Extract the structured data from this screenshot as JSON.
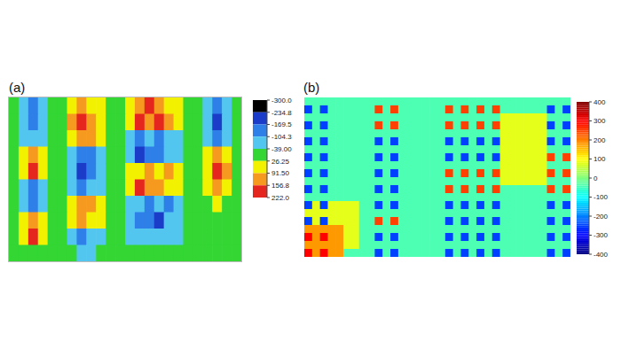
{
  "chart_data": [
    {
      "type": "heatmap",
      "title": "(a)",
      "tick_labels": false,
      "z": [
        [
          0,
          -60,
          -120,
          -60,
          0,
          0,
          60,
          120,
          80,
          50,
          0,
          0,
          60,
          110,
          160,
          120,
          70,
          50,
          0,
          0,
          -70,
          -150,
          -80,
          0
        ],
        [
          0,
          -80,
          -140,
          -70,
          0,
          0,
          110,
          180,
          150,
          90,
          0,
          0,
          80,
          200,
          130,
          190,
          100,
          60,
          0,
          0,
          -90,
          -200,
          -100,
          0
        ],
        [
          0,
          -60,
          -100,
          -50,
          0,
          0,
          70,
          130,
          100,
          60,
          0,
          0,
          -60,
          -120,
          -90,
          -140,
          -70,
          -50,
          0,
          0,
          -60,
          -130,
          -70,
          0
        ],
        [
          0,
          60,
          120,
          50,
          0,
          0,
          -80,
          -150,
          -120,
          -60,
          0,
          0,
          -80,
          -200,
          -130,
          -160,
          -100,
          -60,
          0,
          0,
          50,
          100,
          60,
          0
        ],
        [
          0,
          80,
          170,
          60,
          0,
          0,
          -100,
          -180,
          -140,
          -70,
          0,
          0,
          60,
          90,
          130,
          80,
          110,
          50,
          0,
          0,
          90,
          190,
          110,
          0
        ],
        [
          0,
          -50,
          -110,
          -60,
          0,
          0,
          -60,
          -110,
          -90,
          -50,
          0,
          0,
          80,
          170,
          110,
          140,
          90,
          60,
          0,
          0,
          60,
          120,
          70,
          0
        ],
        [
          0,
          -70,
          -130,
          -50,
          0,
          0,
          80,
          150,
          110,
          60,
          0,
          0,
          -60,
          -100,
          -150,
          -90,
          -120,
          -50,
          0,
          0,
          0,
          30,
          0,
          0
        ],
        [
          0,
          70,
          140,
          60,
          0,
          0,
          60,
          120,
          90,
          50,
          0,
          0,
          -70,
          -140,
          -110,
          -170,
          -80,
          -60,
          0,
          0,
          0,
          0,
          0,
          0
        ],
        [
          0,
          90,
          200,
          80,
          0,
          0,
          -60,
          -120,
          -90,
          -50,
          0,
          0,
          -50,
          -90,
          -60,
          -100,
          -50,
          -40,
          0,
          0,
          0,
          0,
          0,
          0
        ],
        [
          0,
          0,
          0,
          0,
          0,
          0,
          0,
          -50,
          -40,
          0,
          0,
          0,
          0,
          0,
          0,
          0,
          0,
          0,
          0,
          0,
          0,
          0,
          0,
          0
        ]
      ],
      "colorbar": {
        "range": [
          -300,
          222
        ],
        "ticks": [
          {
            "value": -300,
            "label": "-300.0"
          },
          -234.8,
          -169.5,
          -104.3,
          {
            "value": -39,
            "label": "-39.00"
          },
          26.25,
          {
            "value": 91.5,
            "label": "91.50"
          },
          156.8,
          {
            "value": 222,
            "label": "222.0"
          }
        ],
        "colors": [
          "#000000",
          "#1a3cc8",
          "#2f7fe8",
          "#53c6f0",
          "#33d633",
          "#f2f200",
          "#f59a1e",
          "#e5261e"
        ]
      }
    },
    {
      "type": "heatmap",
      "title": "(b)",
      "tick_labels": false,
      "z": [
        [
          -40,
          -40,
          -40,
          -40,
          -40,
          -40,
          -40,
          -40,
          -40,
          -40,
          -40,
          -40,
          -40,
          -40,
          -40,
          -40,
          -40,
          -40,
          -40,
          -40,
          -40,
          -40,
          -40,
          -40,
          -40,
          -40,
          -40,
          -40,
          -40,
          -40,
          -40,
          -40,
          -40,
          -40
        ],
        [
          -250,
          -40,
          -250,
          -40,
          -40,
          -40,
          -40,
          -40,
          -40,
          250,
          -40,
          250,
          -40,
          -40,
          -40,
          -40,
          -40,
          -40,
          250,
          -40,
          250,
          -40,
          250,
          -40,
          250,
          -40,
          -40,
          -40,
          -40,
          -40,
          -40,
          -250,
          -40,
          -250
        ],
        [
          -40,
          -40,
          -40,
          -40,
          -40,
          -40,
          -40,
          -40,
          -40,
          -40,
          -40,
          -40,
          -40,
          -40,
          -40,
          -40,
          -40,
          -40,
          -40,
          -40,
          -40,
          -40,
          -40,
          -40,
          -40,
          80,
          80,
          80,
          80,
          80,
          80,
          -40,
          -40,
          -40
        ],
        [
          -250,
          -40,
          -250,
          -40,
          -40,
          -40,
          -40,
          -40,
          -40,
          250,
          -40,
          250,
          -40,
          -40,
          -40,
          -40,
          -40,
          -40,
          250,
          -40,
          250,
          -40,
          250,
          -40,
          250,
          80,
          80,
          80,
          80,
          80,
          80,
          -250,
          -40,
          -250
        ],
        [
          -40,
          -40,
          -40,
          -40,
          -40,
          -40,
          -40,
          -40,
          -40,
          -40,
          -40,
          -40,
          -40,
          -40,
          -40,
          -40,
          -40,
          -40,
          -40,
          -40,
          -40,
          -40,
          -40,
          -40,
          -40,
          80,
          80,
          80,
          80,
          80,
          80,
          -40,
          -40,
          -40
        ],
        [
          -250,
          -40,
          -250,
          -40,
          -40,
          -40,
          -40,
          -40,
          -40,
          -250,
          -40,
          -250,
          -40,
          -40,
          -40,
          -40,
          -40,
          -40,
          -250,
          -40,
          -250,
          -40,
          -250,
          -40,
          -250,
          80,
          80,
          80,
          80,
          80,
          80,
          -250,
          -40,
          -250
        ],
        [
          -40,
          -40,
          -40,
          -40,
          -40,
          -40,
          -40,
          -40,
          -40,
          -40,
          -40,
          -40,
          -40,
          -40,
          -40,
          -40,
          -40,
          -40,
          -40,
          -40,
          -40,
          -40,
          -40,
          -40,
          -40,
          80,
          80,
          80,
          80,
          80,
          80,
          -40,
          -40,
          -40
        ],
        [
          -250,
          -40,
          -250,
          -40,
          -40,
          -40,
          -40,
          -40,
          -40,
          -250,
          -40,
          -250,
          -40,
          -40,
          -40,
          -40,
          -40,
          -40,
          -250,
          -40,
          -250,
          -40,
          -250,
          -40,
          -250,
          80,
          80,
          80,
          80,
          80,
          80,
          250,
          -40,
          250
        ],
        [
          -40,
          -40,
          -40,
          -40,
          -40,
          -40,
          -40,
          -40,
          -40,
          -40,
          -40,
          -40,
          -40,
          -40,
          -40,
          -40,
          -40,
          -40,
          -40,
          -40,
          -40,
          -40,
          -40,
          -40,
          -40,
          80,
          80,
          80,
          80,
          80,
          80,
          -40,
          -40,
          -40
        ],
        [
          -250,
          -40,
          -250,
          -40,
          -40,
          -40,
          -40,
          -40,
          -40,
          -250,
          -40,
          -250,
          -40,
          -40,
          -40,
          -40,
          -40,
          -40,
          250,
          -40,
          250,
          -40,
          250,
          -40,
          250,
          80,
          80,
          80,
          80,
          80,
          80,
          250,
          -40,
          250
        ],
        [
          -40,
          -40,
          -40,
          -40,
          -40,
          -40,
          -40,
          -40,
          -40,
          -40,
          -40,
          -40,
          -40,
          -40,
          -40,
          -40,
          -40,
          -40,
          -40,
          -40,
          -40,
          -40,
          -40,
          -40,
          -40,
          80,
          80,
          80,
          80,
          80,
          80,
          -40,
          -40,
          -40
        ],
        [
          -250,
          -40,
          -250,
          -40,
          -40,
          -40,
          -40,
          -40,
          -40,
          -250,
          -40,
          -250,
          -40,
          -40,
          -40,
          -40,
          -40,
          -40,
          250,
          -40,
          250,
          -40,
          250,
          -40,
          250,
          -40,
          -40,
          -40,
          -40,
          -40,
          -40,
          250,
          -40,
          250
        ],
        [
          -40,
          -40,
          -40,
          -40,
          -40,
          -40,
          -40,
          -40,
          -40,
          -40,
          -40,
          -40,
          -40,
          -40,
          -40,
          -40,
          -40,
          -40,
          -40,
          -40,
          -40,
          -40,
          -40,
          -40,
          -40,
          -40,
          -40,
          -40,
          -40,
          -40,
          -40,
          -40,
          -40,
          -40
        ],
        [
          -250,
          80,
          -250,
          80,
          80,
          80,
          80,
          -40,
          -40,
          -250,
          -40,
          -250,
          -40,
          -40,
          -40,
          -40,
          -40,
          -40,
          -250,
          -40,
          -250,
          -40,
          -250,
          -40,
          -250,
          -40,
          -40,
          -40,
          -40,
          -40,
          -40,
          -250,
          -40,
          -250
        ],
        [
          80,
          80,
          80,
          80,
          80,
          80,
          80,
          -40,
          -40,
          -40,
          -40,
          -40,
          -40,
          -40,
          -40,
          -40,
          -40,
          -40,
          -40,
          -40,
          -40,
          -40,
          -40,
          -40,
          -40,
          -40,
          -40,
          -40,
          -40,
          -40,
          -40,
          -40,
          -40,
          -40
        ],
        [
          -250,
          80,
          -250,
          80,
          80,
          80,
          80,
          -40,
          -40,
          250,
          -40,
          250,
          -40,
          -40,
          -40,
          -40,
          -40,
          -40,
          -250,
          -40,
          -250,
          -40,
          -250,
          -40,
          -250,
          -40,
          -40,
          -40,
          -40,
          -40,
          -40,
          -250,
          -40,
          -250
        ],
        [
          180,
          180,
          180,
          180,
          180,
          80,
          80,
          -40,
          -40,
          -40,
          -40,
          -40,
          -40,
          -40,
          -40,
          -40,
          -40,
          -40,
          -40,
          -40,
          -40,
          -40,
          -40,
          -40,
          -40,
          -40,
          -40,
          -40,
          -40,
          -40,
          -40,
          -40,
          -40,
          -40
        ],
        [
          300,
          180,
          300,
          180,
          180,
          80,
          80,
          -40,
          -40,
          -250,
          -40,
          -250,
          -40,
          -40,
          -40,
          -40,
          -40,
          -40,
          -250,
          -40,
          -250,
          -40,
          -250,
          -40,
          -250,
          -40,
          -40,
          -40,
          -40,
          -40,
          -40,
          -250,
          -40,
          -250
        ],
        [
          180,
          180,
          180,
          180,
          180,
          80,
          80,
          -40,
          -40,
          -40,
          -40,
          -40,
          -40,
          -40,
          -40,
          -40,
          -40,
          -40,
          -40,
          -40,
          -40,
          -40,
          -40,
          -40,
          -40,
          -40,
          -40,
          -40,
          -40,
          -40,
          -40,
          -40,
          -40,
          -40
        ],
        [
          300,
          180,
          300,
          180,
          180,
          -40,
          -40,
          -40,
          -40,
          -250,
          -40,
          -250,
          -40,
          -40,
          -40,
          -40,
          -40,
          -40,
          -250,
          -40,
          -250,
          -40,
          -250,
          -40,
          -250,
          -40,
          -40,
          -40,
          -40,
          -40,
          -40,
          -250,
          -40,
          -250
        ]
      ],
      "colorbar": {
        "range": [
          -400,
          400
        ],
        "ticks": [
          400,
          300,
          200,
          100,
          0,
          -100,
          -200,
          -300,
          -400
        ],
        "color": "jet"
      }
    }
  ]
}
